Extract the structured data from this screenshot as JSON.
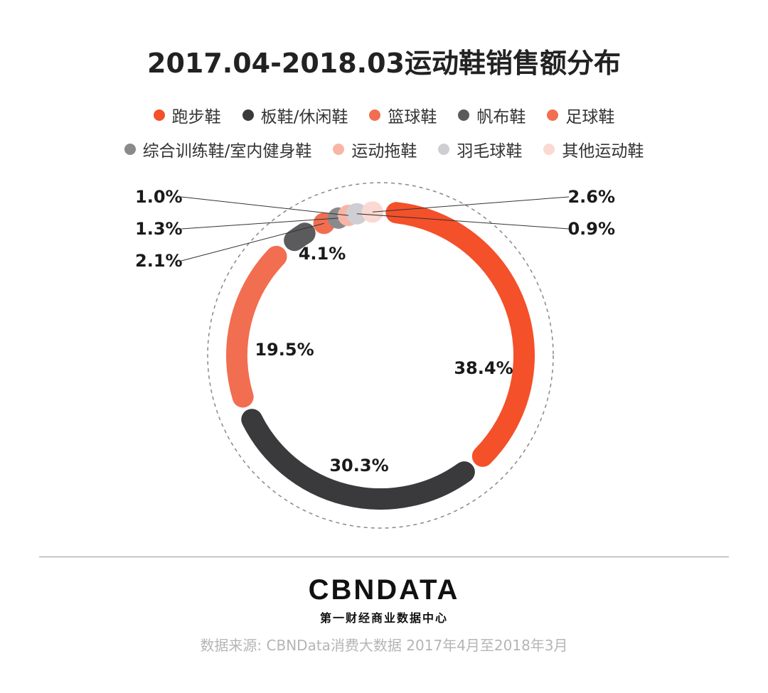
{
  "chart_data": {
    "type": "pie",
    "variant": "donut",
    "title": "2017.04-2018.03运动鞋销售额分布",
    "unit": "%",
    "legend_position": "top",
    "series": [
      {
        "name": "跑步鞋",
        "value": 38.4,
        "label": "38.4%",
        "color": "#f4502a"
      },
      {
        "name": "板鞋/休闲鞋",
        "value": 30.3,
        "label": "30.3%",
        "color": "#3a3a3c"
      },
      {
        "name": "篮球鞋",
        "value": 19.5,
        "label": "19.5%",
        "color": "#f26e50"
      },
      {
        "name": "帆布鞋",
        "value": 4.1,
        "label": "4.1%",
        "color": "#5b5b5e"
      },
      {
        "name": "足球鞋",
        "value": 2.1,
        "label": "2.1%",
        "color": "#f26e50"
      },
      {
        "name": "综合训练鞋/室内健身鞋",
        "value": 1.3,
        "label": "1.3%",
        "color": "#8a8a8c"
      },
      {
        "name": "运动拖鞋",
        "value": 1.0,
        "label": "1.0%",
        "color": "#f8b5a5"
      },
      {
        "name": "羽毛球鞋",
        "value": 0.9,
        "label": "0.9%",
        "color": "#cfcfd3"
      },
      {
        "name": "其他运动鞋",
        "value": 2.6,
        "label": "2.6%",
        "color": "#fbd9d3"
      }
    ]
  },
  "footer": {
    "logo": "CBNDATA",
    "logo_sub": "第一财经商业数据中心",
    "source": "数据来源: CBNData消费大数据 2017年4月至2018年3月"
  }
}
